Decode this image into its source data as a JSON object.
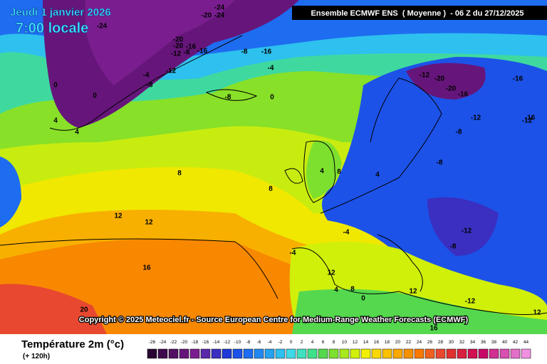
{
  "header": {
    "date": "Jeudi 1 janvier 2026",
    "time": "7:00 locale",
    "model": "Ensemble ECMWF ENS  ( Moyenne )  - 06 Z du 27/12/2025"
  },
  "copyright": "Copyright © 2025 Meteociel.fr - Source European Centre for Medium-Range Weather Forecasts (ECMWF)",
  "footer": {
    "title": "Température 2m (°c)",
    "subtitle": "(+ 120h)"
  },
  "scale": {
    "values": [
      -26,
      -24,
      -22,
      -20,
      -18,
      -16,
      -14,
      -12,
      -10,
      -8,
      -6,
      -4,
      -2,
      0,
      2,
      4,
      6,
      8,
      10,
      12,
      14,
      16,
      18,
      20,
      22,
      24,
      26,
      28,
      30,
      32,
      34,
      36,
      38,
      40,
      42,
      44
    ],
    "colors": [
      "#2a0533",
      "#3e0a4c",
      "#520f63",
      "#66167a",
      "#7a1e8f",
      "#5a2aa8",
      "#3a2fc0",
      "#1f3ad6",
      "#1c52e8",
      "#1e6cf0",
      "#2288f0",
      "#25a3ef",
      "#2ec0ee",
      "#3fd9e8",
      "#3fe0c0",
      "#3fe08a",
      "#55d84e",
      "#7de02e",
      "#a8e81e",
      "#d0f00a",
      "#f0f000",
      "#f8d800",
      "#f8c000",
      "#f8a800",
      "#f89000",
      "#f87800",
      "#f06020",
      "#e84830",
      "#e03030",
      "#d82040",
      "#d01050",
      "#c80868",
      "#d03090",
      "#d850b0",
      "#e070c8",
      "#f090e0"
    ]
  },
  "map_labels": [
    "-24",
    "-20",
    "-24",
    "-24",
    "-20",
    "-20",
    "-16",
    "-12",
    "-16",
    "-8",
    "-12",
    "-4",
    "-8",
    "-16",
    "0",
    "-8",
    "-4",
    "0",
    "-8",
    "-12",
    "-20",
    "-16",
    "-20",
    "-16",
    "-12",
    "-8",
    "-12",
    "-16",
    "0",
    "4",
    "4",
    "8",
    "8",
    "4",
    "8",
    "12",
    "12",
    "16",
    "20",
    "-4",
    "-8",
    "-12",
    "-4",
    "0",
    "4",
    "8",
    "12",
    "16",
    "-12",
    "-8",
    "4",
    "12",
    "12"
  ]
}
